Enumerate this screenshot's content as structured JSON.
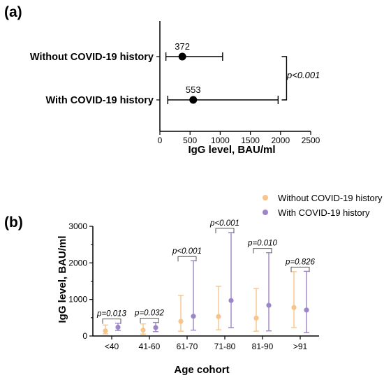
{
  "chart_data": [
    {
      "panel": "(a)",
      "type": "scatter",
      "orientation": "horizontal",
      "categories": [
        "Without COVID-19 history",
        "With COVID-19 history"
      ],
      "values": [
        372,
        553
      ],
      "error_low": [
        100,
        130
      ],
      "error_high": [
        1040,
        1960
      ],
      "value_labels": [
        "372",
        "553"
      ],
      "xlabel": "IgG level, BAU/ml",
      "xlim": [
        0,
        2500
      ],
      "xticks": [
        "0",
        "500",
        "1000",
        "1500",
        "2000",
        "2500"
      ],
      "comparison": "p<0.001",
      "grid": false,
      "color": "#000000"
    },
    {
      "panel": "(b)",
      "type": "scatter",
      "categories": [
        "<40",
        "41-60",
        "61-70",
        "71-80",
        "81-90",
        ">91"
      ],
      "series": [
        {
          "name": "Without COVID-19 history",
          "color": "#f7c48b",
          "values": [
            140,
            160,
            400,
            530,
            490,
            780
          ],
          "error_low": [
            60,
            50,
            130,
            170,
            130,
            230
          ],
          "error_high": [
            300,
            330,
            1110,
            1360,
            1300,
            1760
          ]
        },
        {
          "name": "With COVID-19 history",
          "color": "#9d86c8",
          "values": [
            240,
            230,
            540,
            970,
            840,
            710
          ],
          "error_low": [
            150,
            120,
            160,
            230,
            140,
            90
          ],
          "error_high": [
            350,
            370,
            2060,
            2830,
            2280,
            1770
          ]
        }
      ],
      "p_values": [
        "p=0.013",
        "p=0.032",
        "p<0.001",
        "p<0.001",
        "p=0.010",
        "p=0.826"
      ],
      "xlabel": "Age cohort",
      "ylabel": "IgG level, BAU/ml",
      "ylim": [
        0,
        3000
      ],
      "yticks": [
        "0",
        "1000",
        "2000",
        "3000"
      ],
      "legend_position": "top-right",
      "grid": false
    }
  ]
}
